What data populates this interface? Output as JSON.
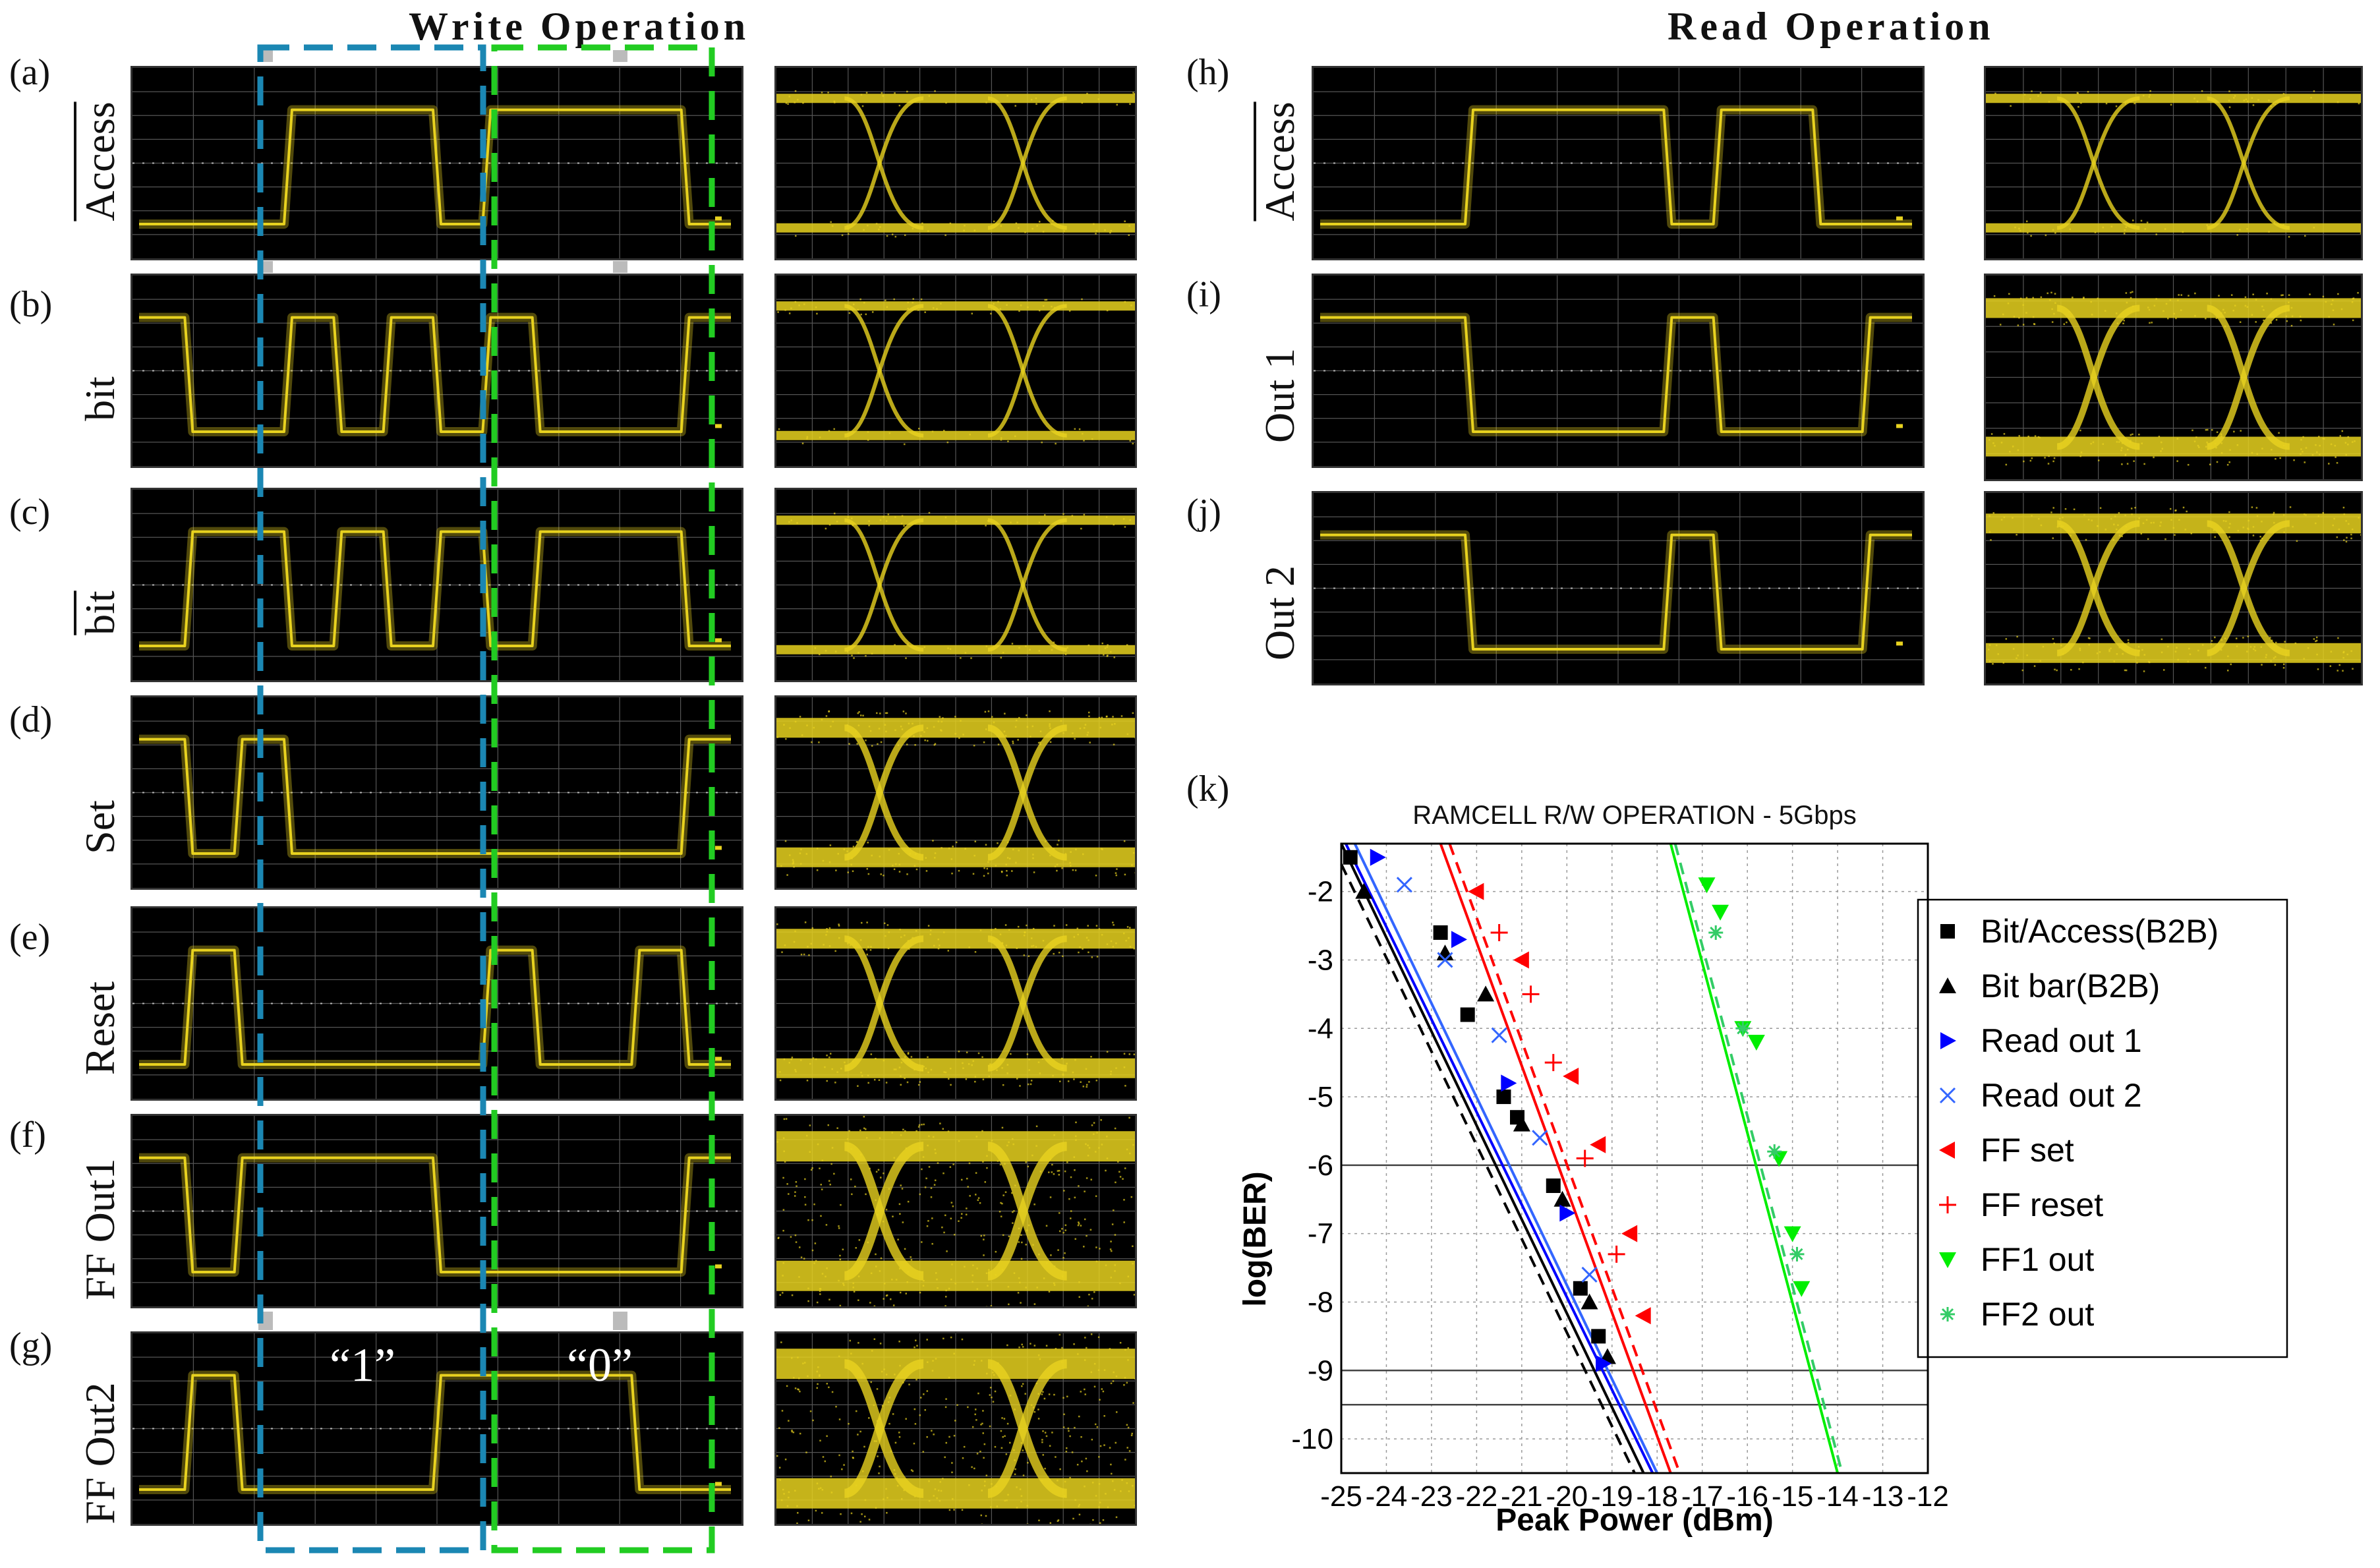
{
  "headings": {
    "write": "Write Operation",
    "read": "Read Operation"
  },
  "panels": {
    "a": {
      "label": "(a)",
      "signal": "Access"
    },
    "b": {
      "label": "(b)",
      "signal": "bit"
    },
    "c": {
      "label": "(c)",
      "signal": "bit"
    },
    "d": {
      "label": "(d)",
      "signal": "Set"
    },
    "e": {
      "label": "(e)",
      "signal": "Reset"
    },
    "f": {
      "label": "(f)",
      "signal": "FF Out1"
    },
    "g": {
      "label": "(g)",
      "signal": "FF Out2"
    },
    "h": {
      "label": "(h)",
      "signal": "Access"
    },
    "i": {
      "label": "(i)",
      "signal": "Out 1"
    },
    "j": {
      "label": "(j)",
      "signal": "Out 2"
    },
    "k": {
      "label": "(k)"
    }
  },
  "annotations": {
    "one": "“1”",
    "zero": "“0”"
  },
  "colors": {
    "trace": "#e8d21f",
    "blue_box": "#1b87b3",
    "green_box": "#22cc22",
    "read1": "#0000ff",
    "ffset": "#ff0000",
    "ff1": "#00ee00"
  },
  "chart_data": {
    "type": "line",
    "title": "RAMCELL R/W OPERATION - 5Gbps",
    "xlabel": "Peak Power (dBm)",
    "ylabel": "log(BER)",
    "xlim": [
      -25,
      -12
    ],
    "ylim": [
      -10.5,
      -1.3
    ],
    "xticks": [
      -25,
      -24,
      -23,
      -22,
      -21,
      -20,
      -19,
      -18,
      -17,
      -16,
      -15,
      -14,
      -13,
      -12
    ],
    "yticks": [
      -2,
      -3,
      -4,
      -5,
      -6,
      -7,
      -8,
      -9,
      -10
    ],
    "reference_lines": [
      -6,
      -9,
      -9.5
    ],
    "series": [
      {
        "name": "Bit/Access(B2B)",
        "color": "#000000",
        "marker": "square",
        "dash": "solid",
        "x": [
          -24.8,
          -22.8,
          -22.2,
          -21.4,
          -21.1,
          -20.3,
          -19.7,
          -19.3
        ],
        "y": [
          -1.5,
          -2.6,
          -3.8,
          -5.0,
          -5.3,
          -6.3,
          -7.8,
          -8.5
        ],
        "fit": [
          [
            -25,
            -1.3
          ],
          [
            -18.3,
            -10.5
          ]
        ]
      },
      {
        "name": "Bit bar(B2B)",
        "color": "#000000",
        "marker": "triangle-up",
        "dash": "dash",
        "x": [
          -24.5,
          -22.7,
          -21.8,
          -21.0,
          -20.1,
          -19.5,
          -19.1
        ],
        "y": [
          -2.0,
          -2.9,
          -3.5,
          -5.4,
          -6.5,
          -8.0,
          -8.8
        ],
        "fit": [
          [
            -25,
            -1.6
          ],
          [
            -18.5,
            -10.5
          ]
        ]
      },
      {
        "name": "Read out 1",
        "color": "#0000ff",
        "marker": "triangle-right",
        "dash": "solid",
        "x": [
          -24.2,
          -22.4,
          -21.3,
          -20.0,
          -19.2
        ],
        "y": [
          -1.5,
          -2.7,
          -4.8,
          -6.7,
          -8.9
        ],
        "fit": [
          [
            -24.9,
            -1.3
          ],
          [
            -18.1,
            -10.5
          ]
        ]
      },
      {
        "name": "Read out 2",
        "color": "#3366ff",
        "marker": "x",
        "dash": "solid",
        "x": [
          -23.6,
          -22.7,
          -21.5,
          -20.6,
          -19.5
        ],
        "y": [
          -1.9,
          -3.0,
          -4.1,
          -5.6,
          -7.6
        ],
        "fit": [
          [
            -24.7,
            -1.3
          ],
          [
            -18.0,
            -10.5
          ]
        ]
      },
      {
        "name": "FF set",
        "color": "#ff0000",
        "marker": "triangle-left",
        "dash": "solid",
        "x": [
          -22.0,
          -21.0,
          -19.9,
          -19.3,
          -18.6,
          -18.3
        ],
        "y": [
          -2.0,
          -3.0,
          -4.7,
          -5.7,
          -7.0,
          -8.2
        ],
        "fit": [
          [
            -22.8,
            -1.3
          ],
          [
            -17.7,
            -10.5
          ]
        ]
      },
      {
        "name": "FF reset",
        "color": "#ff0000",
        "marker": "plus",
        "dash": "dash",
        "x": [
          -21.5,
          -20.8,
          -20.3,
          -19.6,
          -18.9
        ],
        "y": [
          -2.6,
          -3.5,
          -4.5,
          -5.9,
          -7.3
        ],
        "fit": [
          [
            -22.6,
            -1.3
          ],
          [
            -17.5,
            -10.5
          ]
        ]
      },
      {
        "name": "FF1 out",
        "color": "#00ee00",
        "marker": "triangle-down",
        "dash": "solid",
        "x": [
          -16.9,
          -16.6,
          -16.1,
          -15.8,
          -15.3,
          -15.0,
          -14.8
        ],
        "y": [
          -1.9,
          -2.3,
          -4.0,
          -4.2,
          -5.9,
          -7.0,
          -7.8
        ],
        "fit": [
          [
            -17.7,
            -1.3
          ],
          [
            -14.0,
            -10.5
          ]
        ]
      },
      {
        "name": "FF2 out",
        "color": "#33cc66",
        "marker": "star",
        "dash": "dash",
        "x": [
          -16.7,
          -16.1,
          -15.4,
          -14.9
        ],
        "y": [
          -2.6,
          -4.0,
          -5.8,
          -7.3
        ],
        "fit": [
          [
            -17.6,
            -1.3
          ],
          [
            -13.9,
            -10.5
          ]
        ]
      }
    ]
  }
}
